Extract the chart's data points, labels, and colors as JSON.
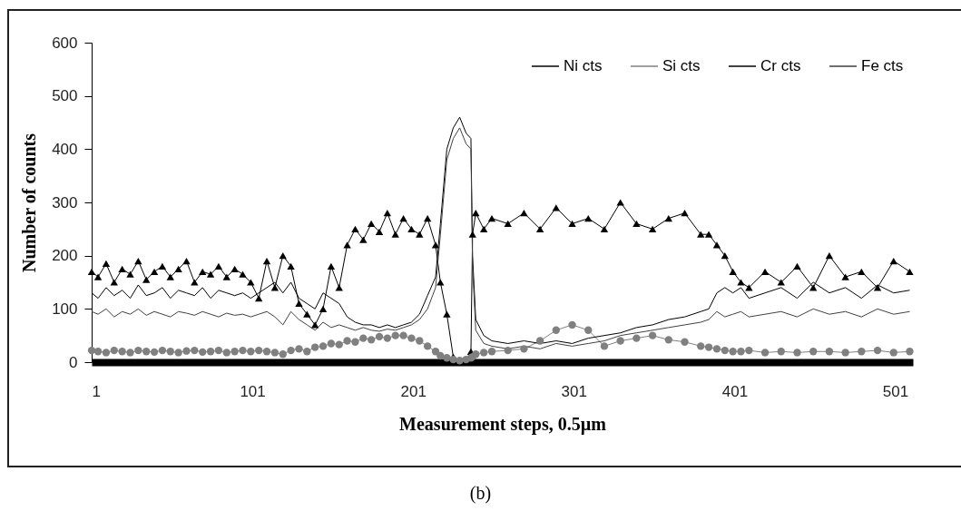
{
  "chart_data": {
    "type": "line",
    "xlabel": "Measurement steps, 0.5µm",
    "ylabel": "Number of counts",
    "annotations": [
      "(b)"
    ],
    "x": [
      1,
      5,
      10,
      15,
      20,
      25,
      30,
      35,
      40,
      45,
      50,
      55,
      60,
      65,
      70,
      75,
      80,
      85,
      90,
      95,
      100,
      105,
      110,
      115,
      120,
      125,
      130,
      135,
      140,
      145,
      150,
      155,
      160,
      165,
      170,
      175,
      180,
      185,
      190,
      195,
      200,
      205,
      210,
      215,
      218,
      222,
      226,
      230,
      234,
      237,
      238,
      240,
      245,
      250,
      260,
      270,
      280,
      290,
      300,
      310,
      320,
      330,
      340,
      350,
      360,
      370,
      380,
      385,
      390,
      395,
      400,
      405,
      410,
      420,
      430,
      440,
      450,
      460,
      470,
      480,
      490,
      500,
      510
    ],
    "series": [
      {
        "name": "Ni cts",
        "color": "#000000",
        "marker": "triangle",
        "values": [
          170,
          160,
          185,
          150,
          175,
          165,
          190,
          155,
          170,
          180,
          160,
          175,
          190,
          150,
          170,
          165,
          180,
          160,
          175,
          165,
          150,
          120,
          190,
          140,
          200,
          180,
          110,
          90,
          70,
          100,
          180,
          140,
          220,
          250,
          230,
          260,
          245,
          280,
          240,
          270,
          250,
          240,
          270,
          220,
          150,
          90,
          10,
          0,
          0,
          20,
          240,
          280,
          250,
          270,
          260,
          280,
          250,
          290,
          260,
          270,
          250,
          300,
          260,
          250,
          270,
          280,
          240,
          240,
          220,
          200,
          170,
          150,
          140,
          170,
          150,
          180,
          140,
          200,
          160,
          170,
          140,
          190,
          170
        ]
      },
      {
        "name": "Si cts",
        "color": "#808080",
        "marker": "circle",
        "values": [
          22,
          20,
          18,
          22,
          20,
          18,
          22,
          20,
          19,
          22,
          20,
          18,
          21,
          22,
          19,
          20,
          22,
          18,
          20,
          22,
          20,
          22,
          20,
          18,
          15,
          22,
          25,
          20,
          28,
          30,
          35,
          33,
          40,
          38,
          45,
          42,
          48,
          45,
          50,
          50,
          45,
          40,
          30,
          20,
          12,
          8,
          5,
          3,
          5,
          8,
          10,
          15,
          18,
          20,
          22,
          25,
          40,
          60,
          70,
          60,
          30,
          40,
          45,
          50,
          42,
          38,
          30,
          28,
          25,
          22,
          20,
          20,
          22,
          18,
          20,
          18,
          20,
          20,
          18,
          20,
          22,
          18,
          20
        ]
      },
      {
        "name": "Cr cts",
        "color": "#000000",
        "marker": "none",
        "values": [
          130,
          120,
          140,
          125,
          135,
          120,
          145,
          125,
          130,
          140,
          120,
          135,
          130,
          125,
          140,
          120,
          135,
          130,
          125,
          130,
          120,
          130,
          140,
          150,
          130,
          150,
          120,
          110,
          100,
          130,
          120,
          110,
          85,
          75,
          70,
          70,
          65,
          70,
          65,
          70,
          75,
          90,
          125,
          160,
          260,
          400,
          440,
          460,
          430,
          420,
          200,
          80,
          50,
          40,
          35,
          40,
          35,
          40,
          35,
          45,
          50,
          55,
          65,
          70,
          80,
          85,
          95,
          100,
          130,
          140,
          130,
          140,
          120,
          130,
          140,
          120,
          150,
          130,
          140,
          120,
          145,
          130,
          135
        ]
      },
      {
        "name": "Fe cts",
        "color": "#404040",
        "marker": "none",
        "values": [
          95,
          90,
          100,
          85,
          95,
          90,
          100,
          88,
          95,
          90,
          85,
          95,
          92,
          88,
          95,
          90,
          85,
          92,
          88,
          90,
          85,
          90,
          95,
          85,
          70,
          95,
          80,
          70,
          60,
          75,
          65,
          70,
          65,
          60,
          65,
          60,
          58,
          62,
          60,
          65,
          70,
          80,
          100,
          140,
          240,
          380,
          420,
          440,
          410,
          400,
          180,
          60,
          35,
          30,
          25,
          30,
          25,
          35,
          30,
          35,
          40,
          50,
          55,
          60,
          65,
          70,
          75,
          80,
          95,
          85,
          90,
          95,
          85,
          90,
          95,
          85,
          100,
          90,
          95,
          85,
          100,
          90,
          95
        ]
      }
    ],
    "xlim": [
      1,
      512
    ],
    "xticks": [
      1,
      101,
      201,
      301,
      401,
      501
    ],
    "ylim": [
      0,
      600
    ],
    "yticks": [
      0,
      100,
      200,
      300,
      400,
      500,
      600
    ],
    "grid": false,
    "legend": "top right"
  }
}
